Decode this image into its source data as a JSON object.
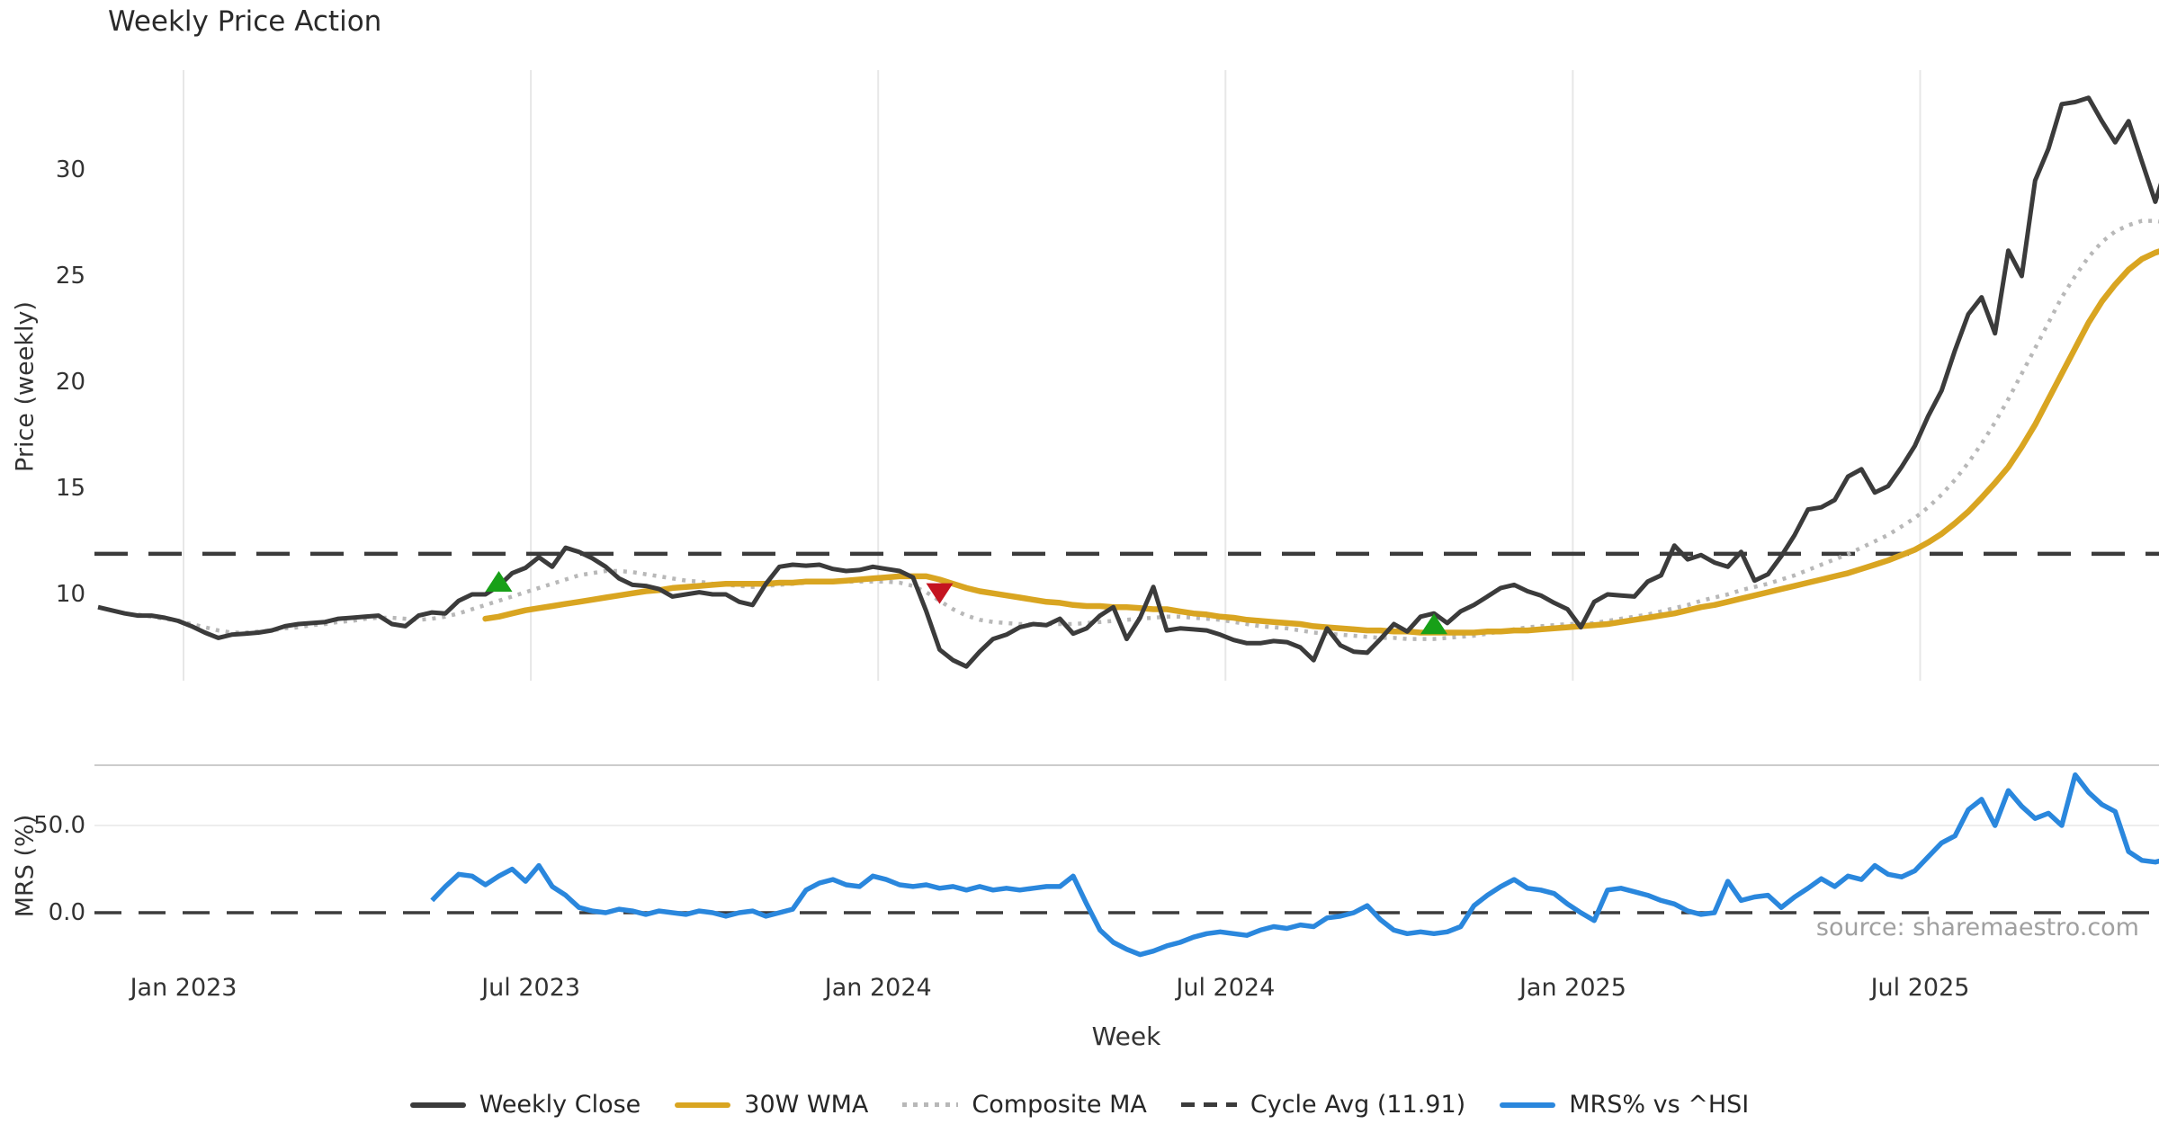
{
  "chart_data": {
    "type": "line",
    "title": "Weekly Price Action",
    "xlabel": "Week",
    "source": "source: sharemaestro.com",
    "cycle_avg": 11.91,
    "weeks_total": 156,
    "x_tick_labels": [
      "Jan 2023",
      "Jul 2023",
      "Jan 2024",
      "Jul 2024",
      "Jan 2025",
      "Jul 2025"
    ],
    "panels": [
      {
        "name": "price",
        "ylabel": "Price (weekly)",
        "yticks": [
          30,
          25,
          20,
          15,
          10
        ],
        "ylim": [
          5.8,
          34.7
        ],
        "grid": "vertical-only"
      },
      {
        "name": "mrs",
        "ylabel": "MRS (%)",
        "yticks": [
          "50.0",
          "0.0"
        ],
        "ylim": [
          -30,
          85
        ],
        "grid": "horizontal-50-only"
      }
    ],
    "series": [
      {
        "name": "Weekly Close",
        "panel": "price",
        "style": "solid",
        "values": [
          9.4,
          9.25,
          9.1,
          9.0,
          9.0,
          8.9,
          8.75,
          8.5,
          8.2,
          7.95,
          8.1,
          8.15,
          8.2,
          8.3,
          8.5,
          8.6,
          8.65,
          8.7,
          8.85,
          8.9,
          8.95,
          9.0,
          8.6,
          8.5,
          9.0,
          9.15,
          9.1,
          9.7,
          10.0,
          10.0,
          10.4,
          11.0,
          11.25,
          11.75,
          11.3,
          12.2,
          12.0,
          11.7,
          11.3,
          10.75,
          10.45,
          10.4,
          10.25,
          9.9,
          10.0,
          10.1,
          10.0,
          10.0,
          9.65,
          9.5,
          10.5,
          11.3,
          11.4,
          11.35,
          11.4,
          11.2,
          11.1,
          11.15,
          11.3,
          11.2,
          11.1,
          10.8,
          9.2,
          7.4,
          6.9,
          6.6,
          7.3,
          7.9,
          8.1,
          8.45,
          8.6,
          8.55,
          8.85,
          8.15,
          8.4,
          9.0,
          9.4,
          7.9,
          8.9,
          10.35,
          8.3,
          8.4,
          8.35,
          8.3,
          8.1,
          7.85,
          7.7,
          7.7,
          7.8,
          7.75,
          7.5,
          6.9,
          8.4,
          7.6,
          7.3,
          7.25,
          7.9,
          8.6,
          8.25,
          8.95,
          9.1,
          8.65,
          9.2,
          9.5,
          9.9,
          10.3,
          10.45,
          10.15,
          9.95,
          9.6,
          9.3,
          8.45,
          9.65,
          10.0,
          9.95,
          9.9,
          10.6,
          10.9,
          12.3,
          11.65,
          11.85,
          11.5,
          11.3,
          12.0,
          10.65,
          10.95,
          11.8,
          12.8,
          14.0,
          14.1,
          14.45,
          15.55,
          15.9,
          14.8,
          15.1,
          16.0,
          17.0,
          18.4,
          19.6,
          21.5,
          23.2,
          24.0,
          22.3,
          26.2,
          25.0,
          29.5,
          31.0,
          33.1,
          33.2,
          33.4,
          32.3,
          31.3,
          32.3,
          30.4,
          28.5,
          30.5
        ]
      },
      {
        "name": "30W WMA",
        "panel": "price",
        "style": "solid",
        "values": [
          null,
          null,
          null,
          null,
          null,
          null,
          null,
          null,
          null,
          null,
          null,
          null,
          null,
          null,
          null,
          null,
          null,
          null,
          null,
          null,
          null,
          null,
          null,
          null,
          null,
          null,
          null,
          null,
          null,
          8.85,
          8.95,
          9.1,
          9.25,
          9.35,
          9.45,
          9.55,
          9.65,
          9.75,
          9.85,
          9.95,
          10.05,
          10.15,
          10.2,
          10.3,
          10.35,
          10.4,
          10.45,
          10.5,
          10.5,
          10.5,
          10.5,
          10.55,
          10.55,
          10.6,
          10.6,
          10.6,
          10.65,
          10.7,
          10.75,
          10.8,
          10.85,
          10.85,
          10.85,
          10.7,
          10.5,
          10.3,
          10.15,
          10.05,
          9.95,
          9.85,
          9.75,
          9.65,
          9.6,
          9.5,
          9.45,
          9.45,
          9.4,
          9.4,
          9.35,
          9.3,
          9.3,
          9.2,
          9.1,
          9.05,
          8.95,
          8.9,
          8.8,
          8.75,
          8.7,
          8.65,
          8.6,
          8.5,
          8.45,
          8.4,
          8.35,
          8.3,
          8.3,
          8.25,
          8.25,
          8.2,
          8.2,
          8.2,
          8.2,
          8.2,
          8.25,
          8.25,
          8.3,
          8.3,
          8.35,
          8.4,
          8.45,
          8.5,
          8.55,
          8.6,
          8.7,
          8.8,
          8.9,
          9.0,
          9.1,
          9.25,
          9.4,
          9.5,
          9.65,
          9.8,
          9.95,
          10.1,
          10.25,
          10.4,
          10.55,
          10.7,
          10.85,
          11.0,
          11.2,
          11.4,
          11.6,
          11.85,
          12.1,
          12.45,
          12.85,
          13.35,
          13.9,
          14.55,
          15.25,
          16.0,
          16.95,
          18.0,
          19.2,
          20.4,
          21.6,
          22.8,
          23.8,
          24.6,
          25.3,
          25.8,
          26.1,
          26.3
        ]
      },
      {
        "name": "Composite MA",
        "panel": "price",
        "style": "dotted",
        "values": [
          null,
          null,
          null,
          9.05,
          8.95,
          8.85,
          8.75,
          8.6,
          8.45,
          8.3,
          8.2,
          8.2,
          8.25,
          8.3,
          8.4,
          8.45,
          8.55,
          8.6,
          8.7,
          8.75,
          8.85,
          8.9,
          8.9,
          8.85,
          8.8,
          8.85,
          8.95,
          9.1,
          9.3,
          9.5,
          9.7,
          9.9,
          10.1,
          10.3,
          10.5,
          10.7,
          10.9,
          11.0,
          11.1,
          11.1,
          11.05,
          10.95,
          10.85,
          10.75,
          10.65,
          10.6,
          10.5,
          10.45,
          10.4,
          10.35,
          10.4,
          10.45,
          10.5,
          10.55,
          10.6,
          10.6,
          10.6,
          10.6,
          10.6,
          10.6,
          10.55,
          10.4,
          10.1,
          9.7,
          9.3,
          9.0,
          8.8,
          8.7,
          8.65,
          8.6,
          8.6,
          8.6,
          8.6,
          8.6,
          8.65,
          8.7,
          8.75,
          8.8,
          8.85,
          8.9,
          8.95,
          8.95,
          8.9,
          8.85,
          8.8,
          8.7,
          8.6,
          8.5,
          8.45,
          8.4,
          8.3,
          8.2,
          8.15,
          8.1,
          8.05,
          8.0,
          7.95,
          7.95,
          7.9,
          7.9,
          7.9,
          7.95,
          8.0,
          8.05,
          8.15,
          8.25,
          8.35,
          8.45,
          8.5,
          8.55,
          8.6,
          8.6,
          8.65,
          8.75,
          8.85,
          8.95,
          9.05,
          9.2,
          9.35,
          9.5,
          9.7,
          9.85,
          10.0,
          10.2,
          10.35,
          10.5,
          10.7,
          10.9,
          11.15,
          11.4,
          11.65,
          11.9,
          12.2,
          12.5,
          12.8,
          13.2,
          13.6,
          14.1,
          14.7,
          15.4,
          16.2,
          17.1,
          18.1,
          19.2,
          20.4,
          21.6,
          22.8,
          24.0,
          25.0,
          25.9,
          26.6,
          27.1,
          27.4,
          27.6,
          27.6,
          27.5
        ]
      },
      {
        "name": "MRS% vs ^HSI",
        "panel": "mrs",
        "style": "solid",
        "values": [
          null,
          null,
          null,
          null,
          null,
          null,
          null,
          null,
          null,
          null,
          null,
          null,
          null,
          null,
          null,
          null,
          null,
          null,
          null,
          null,
          null,
          null,
          null,
          null,
          null,
          7,
          15,
          22,
          21,
          16,
          21,
          25,
          18,
          27,
          15,
          10,
          3,
          1,
          0,
          2,
          1,
          -1,
          1,
          0,
          -1,
          1,
          0,
          -2,
          0,
          1,
          -2,
          0,
          2,
          13,
          17,
          19,
          16,
          15,
          21,
          19,
          16,
          15,
          16,
          14,
          15,
          13,
          15,
          13,
          14,
          13,
          14,
          15,
          15,
          21,
          5,
          -10,
          -17,
          -21,
          -24,
          -22,
          -19,
          -17,
          -14,
          -12,
          -11,
          -12,
          -13,
          -10,
          -8,
          -9,
          -7,
          -8,
          -3,
          -2,
          0,
          4,
          -4,
          -10,
          -12,
          -11,
          -12,
          -11,
          -8,
          4,
          10,
          15,
          19,
          14,
          13,
          11,
          5,
          0,
          -4.5,
          13,
          14,
          12,
          10,
          7,
          5,
          1,
          -1,
          0,
          18,
          7,
          9,
          10,
          3,
          9,
          14,
          19.5,
          15,
          21,
          19,
          27,
          22,
          20.5,
          24,
          32,
          40,
          44,
          59,
          65,
          50,
          70,
          61,
          54,
          57,
          50,
          79,
          69,
          62,
          58,
          35,
          30,
          29,
          31
        ]
      }
    ],
    "markers": [
      {
        "week": 30,
        "price": 10.55,
        "type": "buy"
      },
      {
        "week": 63,
        "price": 10.1,
        "type": "sell"
      },
      {
        "week": 100,
        "price": 8.55,
        "type": "buy"
      }
    ],
    "legend": [
      {
        "label": "Weekly Close",
        "color": "#3b3b3b",
        "style": "solid"
      },
      {
        "label": "30W WMA",
        "color": "#d9a521",
        "style": "solid"
      },
      {
        "label": "Composite MA",
        "color": "#b8b8b8",
        "style": "dotted"
      },
      {
        "label": "Cycle Avg (11.91)",
        "color": "#3b3b3b",
        "style": "dashed"
      },
      {
        "label": "MRS% vs ^HSI",
        "color": "#2a87dd",
        "style": "solid"
      }
    ],
    "colors": {
      "weekly_close": "#3b3b3b",
      "wma30": "#d9a521",
      "composite": "#b8b8b8",
      "cycle_avg": "#3b3b3b",
      "mrs": "#2a87dd",
      "buy_marker": "#18a018",
      "sell_marker": "#c41420",
      "gridline": "#e7e7e7",
      "grid50": "#ededed",
      "panel_spine": "#cccccc",
      "zero_dash": "#3c3c3c"
    },
    "layout": {
      "x_tick_weeks": [
        6.4,
        32.4,
        58.4,
        84.4,
        110.4,
        136.4
      ],
      "legend_position": "bottom center",
      "grid": "vertical gridlines on price panel only"
    }
  }
}
